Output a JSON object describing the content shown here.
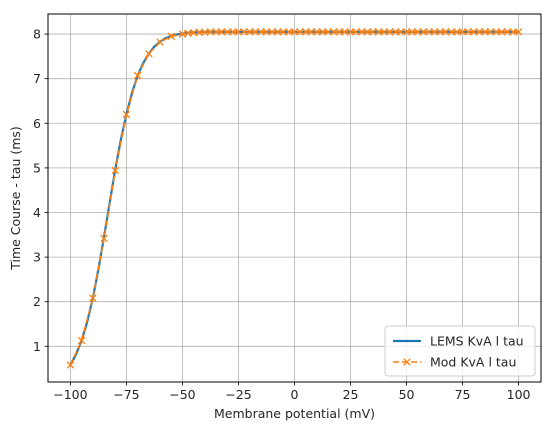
{
  "chart_data": {
    "type": "line",
    "xlabel": "Membrane potential (mV)",
    "ylabel": "Time Course - tau (ms)",
    "xlim": [
      -110,
      110
    ],
    "ylim": [
      0.2,
      8.45
    ],
    "xticks": [
      -100,
      -75,
      -50,
      -25,
      0,
      25,
      50,
      75,
      100
    ],
    "xtick_labels": [
      "−100",
      "−75",
      "−50",
      "−25",
      "0",
      "25",
      "50",
      "75",
      "100"
    ],
    "yticks": [
      1,
      2,
      3,
      4,
      5,
      6,
      7,
      8
    ],
    "ytick_labels": [
      "1",
      "2",
      "3",
      "4",
      "5",
      "6",
      "7",
      "8"
    ],
    "grid": true,
    "legend_position": "bottom-right",
    "colors": {
      "lems": "#1f77b4",
      "mod": "#ff7f0e",
      "grid": "#b0b0b0"
    },
    "series": [
      {
        "name": "LEMS KvA l tau",
        "style": "solid",
        "x": [
          -100,
          -97.5,
          -95,
          -92.5,
          -90,
          -87.5,
          -85,
          -82.5,
          -80,
          -77.5,
          -75,
          -72.5,
          -70,
          -67.5,
          -65,
          -62.5,
          -60,
          -57.5,
          -55,
          -52.5,
          -50,
          -47.5,
          -45,
          -42.5,
          -40,
          -30,
          -20,
          -10,
          0,
          10,
          20,
          30,
          40,
          50,
          60,
          70,
          80,
          90,
          100
        ],
        "y": [
          0.58,
          0.82,
          1.13,
          1.55,
          2.08,
          2.73,
          3.45,
          4.21,
          4.96,
          5.63,
          6.2,
          6.68,
          7.07,
          7.35,
          7.56,
          7.72,
          7.83,
          7.91,
          7.96,
          7.99,
          8.01,
          8.03,
          8.04,
          8.04,
          8.05,
          8.05,
          8.05,
          8.05,
          8.05,
          8.05,
          8.05,
          8.05,
          8.05,
          8.05,
          8.05,
          8.05,
          8.05,
          8.05,
          8.05
        ]
      },
      {
        "name": "Mod KvA l tau",
        "style": "dashed-x",
        "x": [
          -100,
          -95,
          -90,
          -85,
          -80,
          -75,
          -70,
          -65,
          -60,
          -55,
          -50,
          -47.5,
          -45,
          -42.5,
          -40,
          -37.5,
          -35,
          -32.5,
          -30,
          -27.5,
          -25,
          -22.5,
          -20,
          -17.5,
          -15,
          -12.5,
          -10,
          -7.5,
          -5,
          -2.5,
          0,
          2.5,
          5,
          7.5,
          10,
          12.5,
          15,
          17.5,
          20,
          22.5,
          25,
          27.5,
          30,
          32.5,
          35,
          37.5,
          40,
          42.5,
          45,
          47.5,
          50,
          52.5,
          55,
          57.5,
          60,
          62.5,
          65,
          67.5,
          70,
          72.5,
          75,
          77.5,
          80,
          82.5,
          85,
          87.5,
          90,
          92.5,
          95,
          97.5,
          100
        ],
        "y": [
          0.58,
          1.13,
          2.08,
          3.42,
          4.94,
          6.2,
          7.07,
          7.56,
          7.82,
          7.95,
          8.0,
          8.02,
          8.03,
          8.04,
          8.04,
          8.05,
          8.05,
          8.05,
          8.05,
          8.05,
          8.05,
          8.05,
          8.05,
          8.05,
          8.05,
          8.05,
          8.05,
          8.05,
          8.05,
          8.05,
          8.05,
          8.05,
          8.05,
          8.05,
          8.05,
          8.05,
          8.05,
          8.05,
          8.05,
          8.05,
          8.05,
          8.05,
          8.05,
          8.05,
          8.05,
          8.05,
          8.05,
          8.05,
          8.05,
          8.05,
          8.05,
          8.05,
          8.05,
          8.05,
          8.05,
          8.05,
          8.05,
          8.05,
          8.05,
          8.05,
          8.05,
          8.05,
          8.05,
          8.05,
          8.05,
          8.05,
          8.05,
          8.05,
          8.05,
          8.05,
          8.05
        ]
      }
    ]
  }
}
